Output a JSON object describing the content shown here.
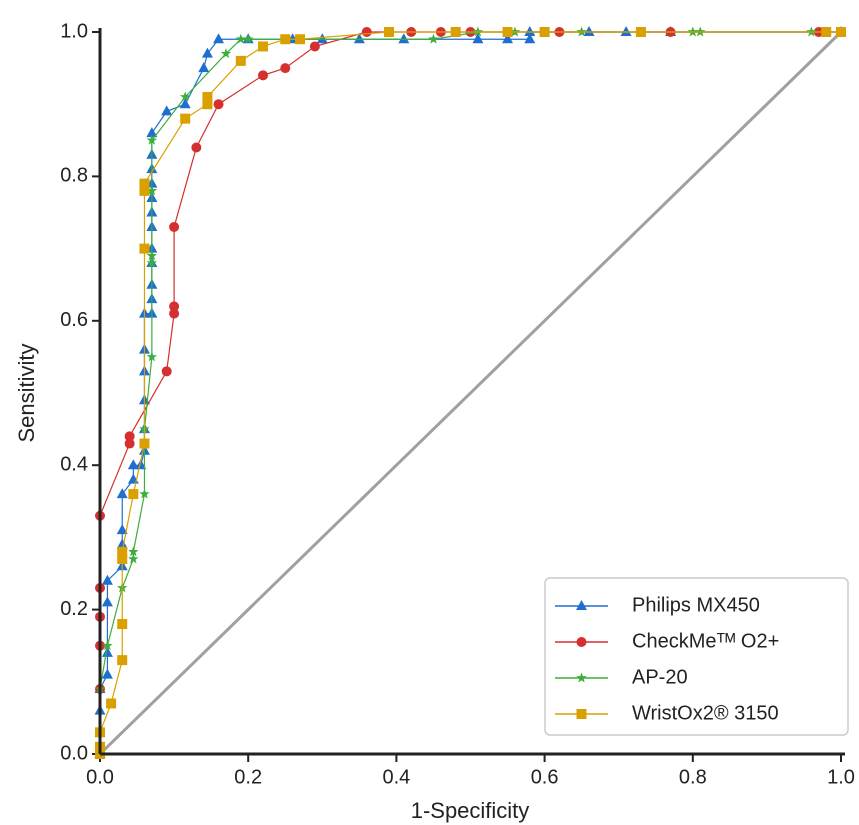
{
  "chart_data": {
    "type": "line",
    "xlabel": "1-Specificity",
    "ylabel": "Sensitivity",
    "xlim": [
      0,
      1
    ],
    "ylim": [
      0,
      1
    ],
    "xticks": [
      {
        "value": 0,
        "label": "0.0"
      },
      0.2,
      0.4,
      0.6,
      0.8,
      {
        "value": 1,
        "label": "1.0"
      }
    ],
    "yticks": [
      {
        "value": 0,
        "label": "0.0"
      },
      0.2,
      0.4,
      0.6,
      0.8,
      {
        "value": 1,
        "label": "1.0"
      }
    ],
    "legend": "lower right",
    "diagonal": {
      "x": [
        0,
        1
      ],
      "y": [
        0,
        1
      ],
      "color": "#a0a0a0"
    },
    "series": [
      {
        "name": "Philips MX450",
        "color": "#1f6fd1",
        "marker": "triangle",
        "x": [
          0,
          0,
          0,
          0,
          0.01,
          0.01,
          0.01,
          0.01,
          0.03,
          0.03,
          0.03,
          0.03,
          0.045,
          0.045,
          0.055,
          0.06,
          0.06,
          0.06,
          0.06,
          0.06,
          0.06,
          0.07,
          0.07,
          0.07,
          0.07,
          0.07,
          0.07,
          0.07,
          0.07,
          0.07,
          0.07,
          0.07,
          0.07,
          0.09,
          0.115,
          0.14,
          0.145,
          0.16,
          0.2,
          0.26,
          0.3,
          0.35,
          0.41,
          0.51,
          0.55,
          0.58,
          0.58,
          0.66,
          0.71,
          0.77,
          1
        ],
        "y": [
          0,
          0.03,
          0.06,
          0.09,
          0.11,
          0.14,
          0.21,
          0.24,
          0.26,
          0.29,
          0.31,
          0.36,
          0.38,
          0.4,
          0.4,
          0.42,
          0.45,
          0.49,
          0.53,
          0.56,
          0.61,
          0.61,
          0.63,
          0.65,
          0.68,
          0.7,
          0.73,
          0.75,
          0.77,
          0.79,
          0.81,
          0.83,
          0.86,
          0.89,
          0.9,
          0.95,
          0.97,
          0.99,
          0.99,
          0.99,
          0.99,
          0.99,
          0.99,
          0.99,
          0.99,
          0.99,
          1,
          1,
          1,
          1,
          1
        ]
      },
      {
        "name": "CheckMeᵀᴹ O2+",
        "color": "#d62f2f",
        "marker": "circle",
        "x": [
          0,
          0,
          0,
          0,
          0,
          0,
          0.04,
          0.04,
          0.09,
          0.1,
          0.1,
          0.1,
          0.13,
          0.16,
          0.22,
          0.25,
          0.29,
          0.36,
          0.42,
          0.46,
          0.5,
          0.6,
          0.62,
          0.77,
          0.97,
          1
        ],
        "y": [
          0,
          0.09,
          0.15,
          0.19,
          0.23,
          0.33,
          0.43,
          0.44,
          0.53,
          0.61,
          0.62,
          0.73,
          0.84,
          0.9,
          0.94,
          0.95,
          0.98,
          1,
          1,
          1,
          1,
          1,
          1,
          1,
          1,
          1
        ]
      },
      {
        "name": "AP-20",
        "color": "#3cae3c",
        "marker": "star",
        "x": [
          0,
          0,
          0.01,
          0.03,
          0.045,
          0.045,
          0.06,
          0.06,
          0.07,
          0.07,
          0.07,
          0.07,
          0.07,
          0.115,
          0.17,
          0.19,
          0.2,
          0.45,
          0.51,
          0.56,
          0.65,
          0.8,
          0.81,
          0.96,
          1
        ],
        "y": [
          0,
          0.09,
          0.15,
          0.23,
          0.27,
          0.28,
          0.36,
          0.45,
          0.55,
          0.68,
          0.69,
          0.78,
          0.85,
          0.91,
          0.97,
          0.99,
          0.99,
          0.99,
          1,
          1,
          1,
          1,
          1,
          1,
          1
        ]
      },
      {
        "name": "WristOx2® 3150",
        "color": "#d9a000",
        "marker": "square",
        "x": [
          0,
          0,
          0,
          0.015,
          0.03,
          0.03,
          0.03,
          0.03,
          0.045,
          0.06,
          0.06,
          0.06,
          0.06,
          0.115,
          0.145,
          0.145,
          0.19,
          0.22,
          0.25,
          0.27,
          0.39,
          0.48,
          0.55,
          0.6,
          0.73,
          0.98,
          1
        ],
        "y": [
          0,
          0.01,
          0.03,
          0.07,
          0.13,
          0.18,
          0.27,
          0.28,
          0.36,
          0.43,
          0.7,
          0.78,
          0.79,
          0.88,
          0.9,
          0.91,
          0.96,
          0.98,
          0.99,
          0.99,
          1,
          1,
          1,
          1,
          1,
          1,
          1
        ]
      }
    ]
  }
}
